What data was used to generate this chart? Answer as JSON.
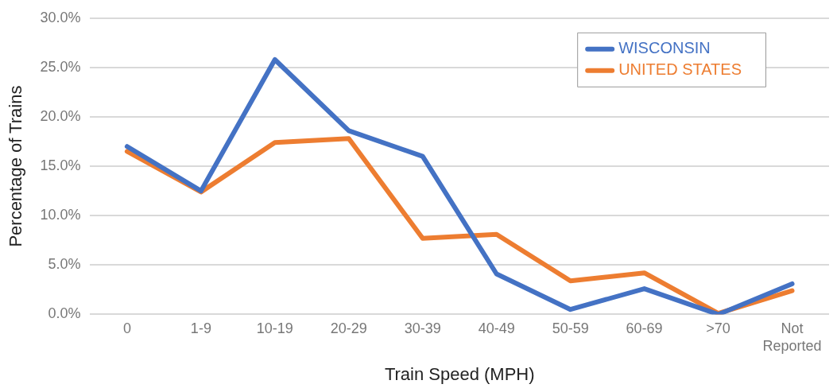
{
  "chart_data": {
    "type": "line",
    "xlabel": "Train Speed (MPH)",
    "ylabel": "Percentage of Trains",
    "categories": [
      "0",
      "1-9",
      "10-19",
      "20-29",
      "30-39",
      "40-49",
      "50-59",
      "60-69",
      ">70",
      "Not Reported"
    ],
    "series": [
      {
        "name": "WISCONSIN",
        "color": "#4472c4",
        "values": [
          17.0,
          12.5,
          25.8,
          18.6,
          16.0,
          4.1,
          0.5,
          2.6,
          0.0,
          3.1
        ]
      },
      {
        "name": "UNITED STATES",
        "color": "#ed7d31",
        "values": [
          16.5,
          12.4,
          17.4,
          17.8,
          7.7,
          8.1,
          3.4,
          4.2,
          0.1,
          2.4
        ]
      }
    ],
    "ylim": [
      0,
      30
    ],
    "yticks": [
      {
        "value": 0,
        "label": "0.0%"
      },
      {
        "value": 5,
        "label": "5.0%"
      },
      {
        "value": 10,
        "label": "10.0%"
      },
      {
        "value": 15,
        "label": "15.0%"
      },
      {
        "value": 20,
        "label": "20.0%"
      },
      {
        "value": 25,
        "label": "25.0%"
      },
      {
        "value": 30,
        "label": "30.0%"
      }
    ],
    "grid": "y",
    "legend": "top right",
    "marker": "none",
    "line_style": "solid"
  }
}
